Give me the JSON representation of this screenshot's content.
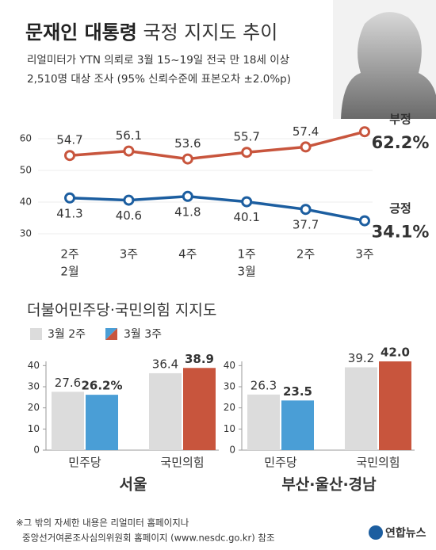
{
  "title_parts": [
    "문재인 대통령",
    "국정 지지도 추이"
  ],
  "subtitle": [
    "리얼미터가 YTN 의뢰로 3월 15~19일 전국 만 18세 이상",
    "2,510명 대상 조사 (95% 신뢰수준에 표본오차 ±2.0%p)"
  ],
  "notes": [
    "※그 밖의 자세한 내용은 리얼미터 홈페이지나",
    "중앙선거여론조사심의위원회 홈페이지 (www.nesdc.go.kr) 참조"
  ],
  "source": "연합뉴스",
  "chart_data": [
    {
      "type": "line",
      "categories": [
        "2주",
        "3주",
        "4주",
        "1주",
        "2주",
        "3주"
      ],
      "months": [
        "2월",
        null,
        null,
        "3월",
        null,
        null
      ],
      "series": [
        {
          "name": "부정",
          "color": "#c8553d",
          "values": [
            54.7,
            56.1,
            53.6,
            55.7,
            57.4,
            62.2
          ],
          "value_labels": [
            "54.7",
            "56.1",
            "53.6",
            "55.7",
            "57.4",
            "62.2%"
          ]
        },
        {
          "name": "긍정",
          "color": "#1c5ea0",
          "values": [
            41.3,
            40.6,
            41.8,
            40.1,
            37.7,
            34.1
          ],
          "value_labels": [
            "41.3",
            "40.6",
            "41.8",
            "40.1",
            "37.7",
            "34.1%"
          ]
        }
      ],
      "ylim": [
        28,
        64
      ],
      "yticks": [
        30,
        40,
        50,
        60
      ],
      "grid": true
    },
    {
      "type": "grouped-bar",
      "title": "더불어민주당·국민의힘 지지도",
      "series": [
        {
          "name": "3월 2주",
          "color": "#dcdcdc"
        },
        {
          "name": "3월 3주",
          "colors": [
            "#4a9ed6",
            "#c8553d"
          ]
        }
      ],
      "panels": [
        {
          "title": "서울",
          "categories": [
            "민주당",
            "국민의힘"
          ],
          "values": [
            [
              27.6,
              26.2
            ],
            [
              36.4,
              38.9
            ]
          ],
          "value_labels": [
            [
              "27.6",
              "26.2%"
            ],
            [
              "36.4",
              "38.9"
            ]
          ]
        },
        {
          "title": "부산·울산·경남",
          "categories": [
            "민주당",
            "국민의힘"
          ],
          "values": [
            [
              26.3,
              23.5
            ],
            [
              39.2,
              42.0
            ]
          ],
          "value_labels": [
            [
              "26.3",
              "23.5"
            ],
            [
              "39.2",
              "42.0"
            ]
          ]
        }
      ],
      "ylim": [
        0,
        45
      ],
      "yticks": [
        0,
        10,
        20,
        30,
        40
      ]
    }
  ]
}
